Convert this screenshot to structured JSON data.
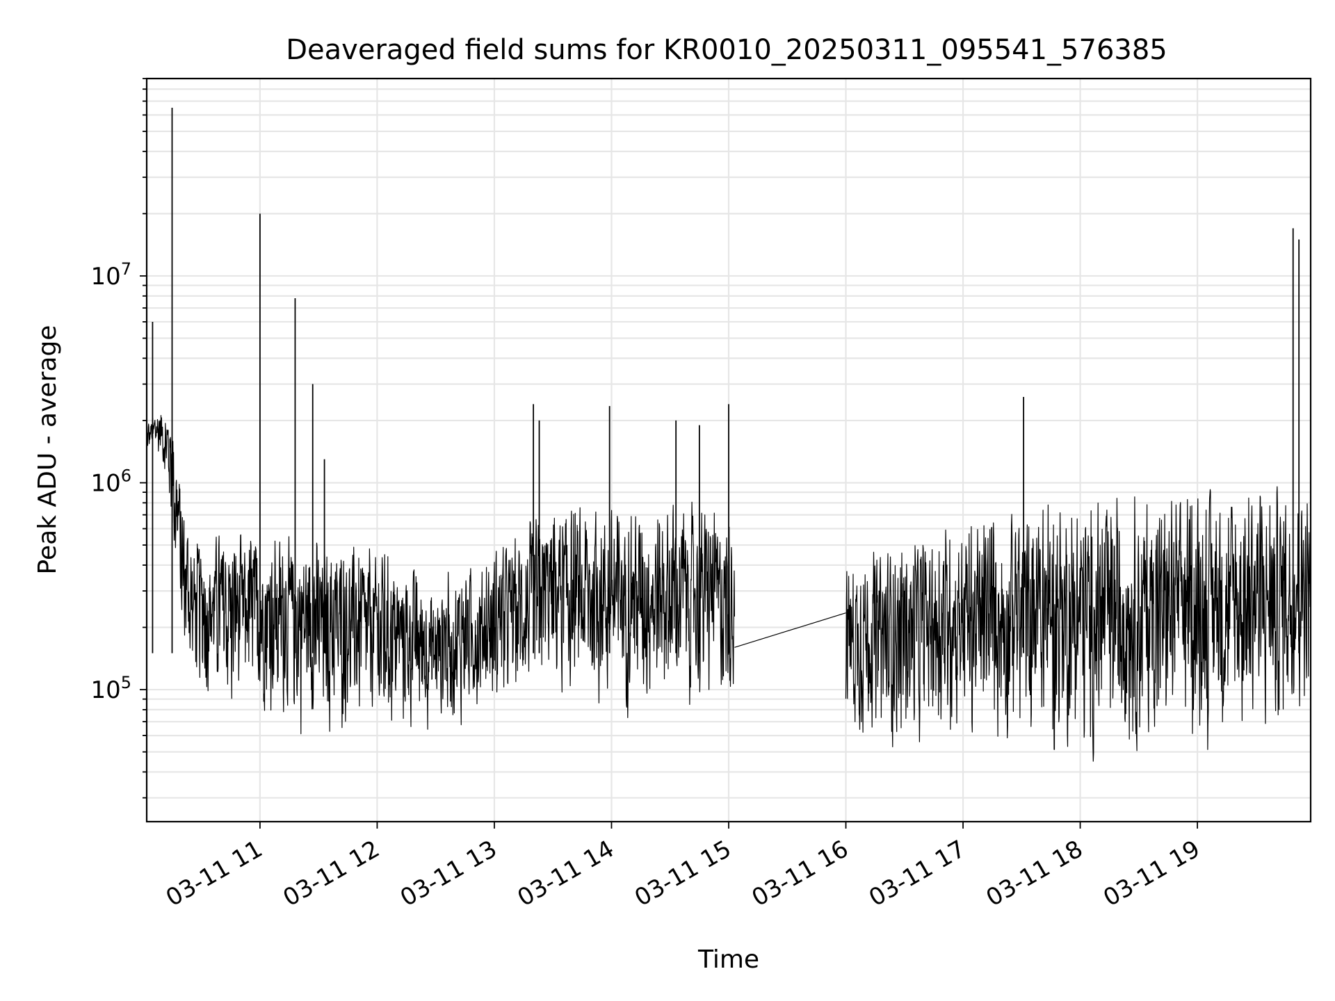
{
  "chart_data": {
    "type": "line",
    "title": "Deaveraged field sums for KR0010_20250311_095541_576385",
    "xlabel": "Time",
    "ylabel": "Peak ADU - average",
    "yscale": "log",
    "ylim": [
      23000,
      90000000
    ],
    "xlim": [
      "2025-03-11 10:02",
      "2025-03-11 19:58"
    ],
    "xticks": [
      {
        "value": "2025-03-11 11:00",
        "label": "03-11 11"
      },
      {
        "value": "2025-03-11 12:00",
        "label": "03-11 12"
      },
      {
        "value": "2025-03-11 13:00",
        "label": "03-11 13"
      },
      {
        "value": "2025-03-11 14:00",
        "label": "03-11 14"
      },
      {
        "value": "2025-03-11 15:00",
        "label": "03-11 15"
      },
      {
        "value": "2025-03-11 16:00",
        "label": "03-11 16"
      },
      {
        "value": "2025-03-11 17:00",
        "label": "03-11 17"
      },
      {
        "value": "2025-03-11 18:00",
        "label": "03-11 18"
      },
      {
        "value": "2025-03-11 19:00",
        "label": "03-11 19"
      }
    ],
    "yticks": [
      {
        "value": 100000,
        "base": "10",
        "exp": "5"
      },
      {
        "value": 1000000,
        "base": "10",
        "exp": "6"
      },
      {
        "value": 10000000,
        "base": "10",
        "exp": "7"
      }
    ],
    "grid": true,
    "line_color": "#000000",
    "grid_color": "#e6e6e6",
    "series": [
      {
        "segments": [
          {
            "from": "2025-03-11 10:02",
            "to": "2025-03-11 15:03",
            "envelope": [
              {
                "x": "2025-03-11 10:02",
                "low": 1300000,
                "high": 2000000
              },
              {
                "x": "2025-03-11 10:10",
                "low": 1200000,
                "high": 2500000
              },
              {
                "x": "2025-03-11 10:15",
                "low": 400000,
                "high": 2500000
              },
              {
                "x": "2025-03-11 10:20",
                "low": 150000,
                "high": 1000000
              },
              {
                "x": "2025-03-11 10:25",
                "low": 80000,
                "high": 600000
              },
              {
                "x": "2025-03-11 10:40",
                "low": 70000,
                "high": 600000
              },
              {
                "x": "2025-03-11 11:00",
                "low": 70000,
                "high": 600000
              },
              {
                "x": "2025-03-11 11:30",
                "low": 55000,
                "high": 550000
              },
              {
                "x": "2025-03-11 12:00",
                "low": 55000,
                "high": 500000
              },
              {
                "x": "2025-03-11 12:30",
                "low": 55000,
                "high": 350000
              },
              {
                "x": "2025-03-11 13:00",
                "low": 70000,
                "high": 500000
              },
              {
                "x": "2025-03-11 13:30",
                "low": 80000,
                "high": 800000
              },
              {
                "x": "2025-03-11 14:00",
                "low": 70000,
                "high": 800000
              },
              {
                "x": "2025-03-11 14:30",
                "low": 70000,
                "high": 900000
              },
              {
                "x": "2025-03-11 15:03",
                "low": 80000,
                "high": 700000
              }
            ]
          },
          {
            "from": "2025-03-11 15:03",
            "to": "2025-03-11 16:00",
            "points": [
              {
                "x": "2025-03-11 15:03",
                "y": 160000
              },
              {
                "x": "2025-03-11 16:00",
                "y": 235000
              }
            ]
          },
          {
            "from": "2025-03-11 16:00",
            "to": "2025-03-11 19:58",
            "envelope": [
              {
                "x": "2025-03-11 16:00",
                "low": 50000,
                "high": 450000
              },
              {
                "x": "2025-03-11 16:30",
                "low": 45000,
                "high": 550000
              },
              {
                "x": "2025-03-11 17:00",
                "low": 50000,
                "high": 700000
              },
              {
                "x": "2025-03-11 17:30",
                "low": 45000,
                "high": 850000
              },
              {
                "x": "2025-03-11 18:00",
                "low": 40000,
                "high": 850000
              },
              {
                "x": "2025-03-11 18:30",
                "low": 40000,
                "high": 900000
              },
              {
                "x": "2025-03-11 19:00",
                "low": 45000,
                "high": 950000
              },
              {
                "x": "2025-03-11 19:30",
                "low": 50000,
                "high": 1000000
              },
              {
                "x": "2025-03-11 19:58",
                "low": 60000,
                "high": 1000000
              }
            ]
          }
        ],
        "spikes": [
          {
            "x": "2025-03-11 10:15",
            "y": 65000000
          },
          {
            "x": "2025-03-11 10:05",
            "y": 6000000
          },
          {
            "x": "2025-03-11 11:00",
            "y": 20000000
          },
          {
            "x": "2025-03-11 11:18",
            "y": 7800000
          },
          {
            "x": "2025-03-11 11:27",
            "y": 3000000
          },
          {
            "x": "2025-03-11 11:33",
            "y": 1300000
          },
          {
            "x": "2025-03-11 13:20",
            "y": 2400000
          },
          {
            "x": "2025-03-11 13:23",
            "y": 2000000
          },
          {
            "x": "2025-03-11 13:59",
            "y": 2350000
          },
          {
            "x": "2025-03-11 14:33",
            "y": 2000000
          },
          {
            "x": "2025-03-11 14:45",
            "y": 1900000
          },
          {
            "x": "2025-03-11 15:00",
            "y": 2400000
          },
          {
            "x": "2025-03-11 17:31",
            "y": 2600000
          },
          {
            "x": "2025-03-11 19:49",
            "y": 17000000
          },
          {
            "x": "2025-03-11 19:52",
            "y": 15000000
          }
        ]
      }
    ]
  }
}
